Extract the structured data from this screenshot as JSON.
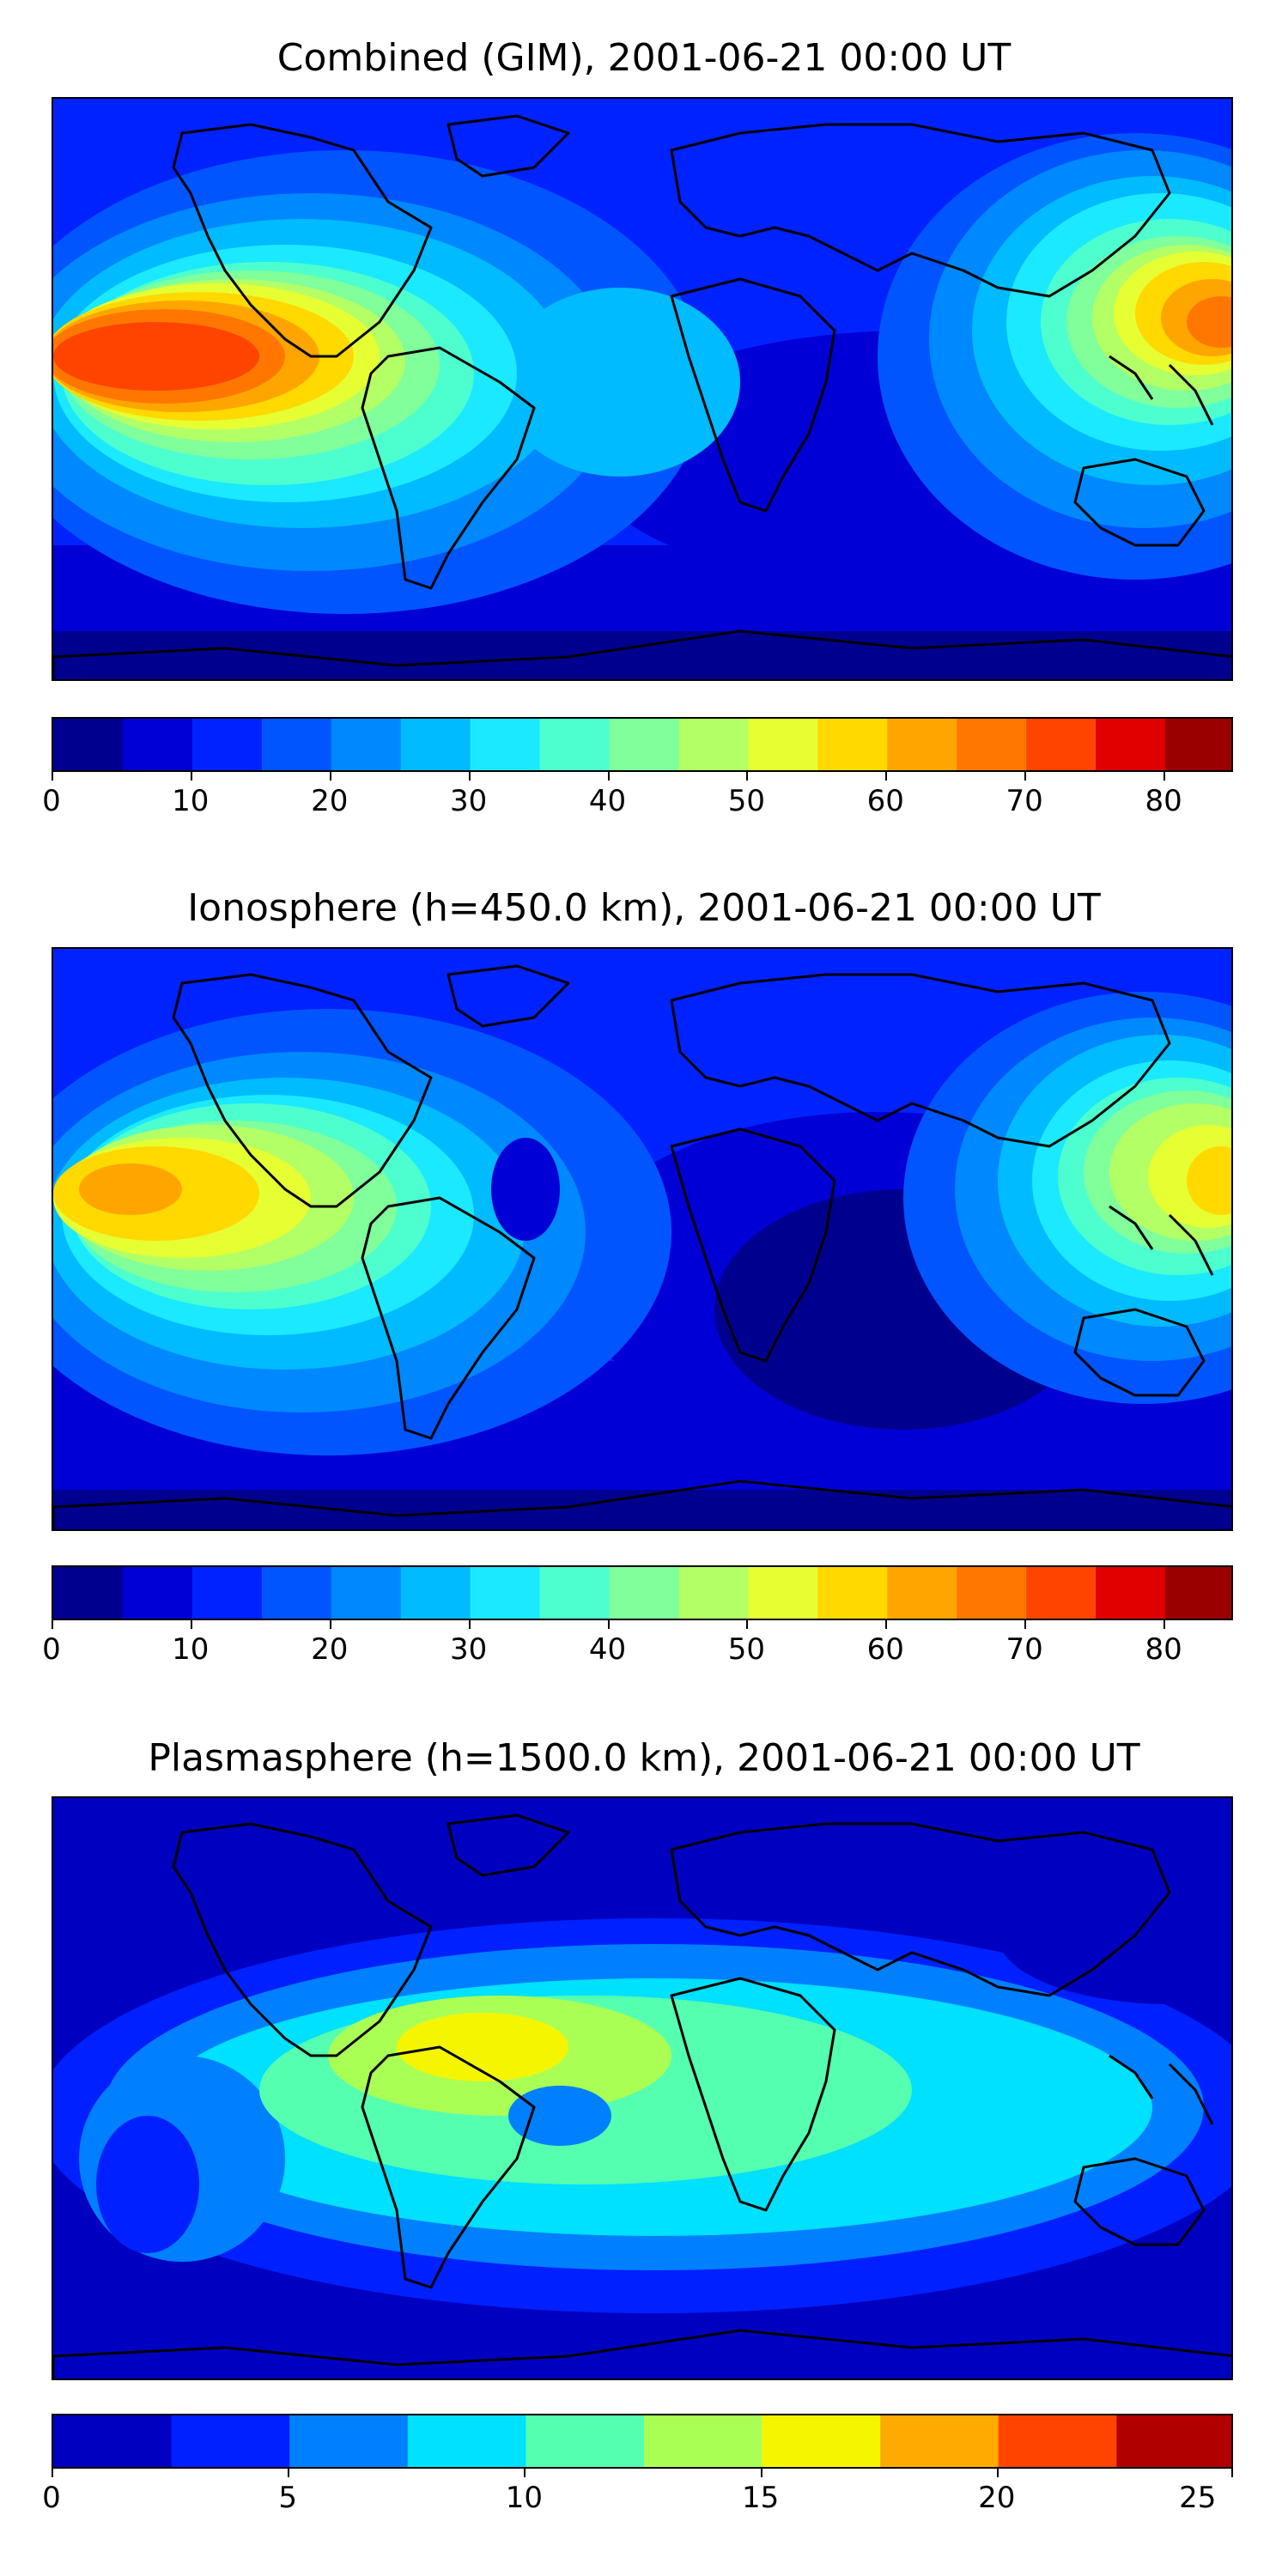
{
  "panels": [
    {
      "title": "Combined (GIM), 2001-06-21 00:00 UT",
      "colorbar": {
        "min": 0,
        "max": 85,
        "step": 5,
        "ticks": [
          "0",
          "10",
          "20",
          "30",
          "40",
          "50",
          "60",
          "70",
          "80"
        ],
        "tick_values": [
          0,
          10,
          20,
          30,
          40,
          50,
          60,
          70,
          80
        ],
        "colors": [
          "#00008f",
          "#0000d6",
          "#0022ff",
          "#0055ff",
          "#0088ff",
          "#00bbff",
          "#1be9ff",
          "#4dffce",
          "#80ff9b",
          "#b3ff66",
          "#e6ff33",
          "#ffd900",
          "#ffa500",
          "#ff7700",
          "#ff4400",
          "#e00000",
          "#9b0000"
        ]
      }
    },
    {
      "title": "Ionosphere  (h=450.0 km), 2001-06-21 00:00 UT",
      "colorbar": {
        "min": 0,
        "max": 85,
        "step": 5,
        "ticks": [
          "0",
          "10",
          "20",
          "30",
          "40",
          "50",
          "60",
          "70",
          "80"
        ],
        "tick_values": [
          0,
          10,
          20,
          30,
          40,
          50,
          60,
          70,
          80
        ],
        "colors": [
          "#00008f",
          "#0000d6",
          "#0022ff",
          "#0055ff",
          "#0088ff",
          "#00bbff",
          "#1be9ff",
          "#4dffce",
          "#80ff9b",
          "#b3ff66",
          "#e6ff33",
          "#ffd900",
          "#ffa500",
          "#ff7700",
          "#ff4400",
          "#e00000",
          "#9b0000"
        ]
      }
    },
    {
      "title": "Plasmasphere (h=1500.0 km), 2001-06-21 00:00 UT",
      "colorbar": {
        "min": 0,
        "max": 25,
        "step": 2.5,
        "ticks": [
          "0",
          "5",
          "10",
          "15",
          "20",
          "25"
        ],
        "tick_values": [
          0,
          5,
          10,
          15,
          20,
          25
        ],
        "colors": [
          "#0000c0",
          "#0020ff",
          "#0080ff",
          "#00e0ff",
          "#55ffb0",
          "#aaff55",
          "#f5f500",
          "#ffaa00",
          "#ff4400",
          "#b00000"
        ]
      }
    }
  ]
}
